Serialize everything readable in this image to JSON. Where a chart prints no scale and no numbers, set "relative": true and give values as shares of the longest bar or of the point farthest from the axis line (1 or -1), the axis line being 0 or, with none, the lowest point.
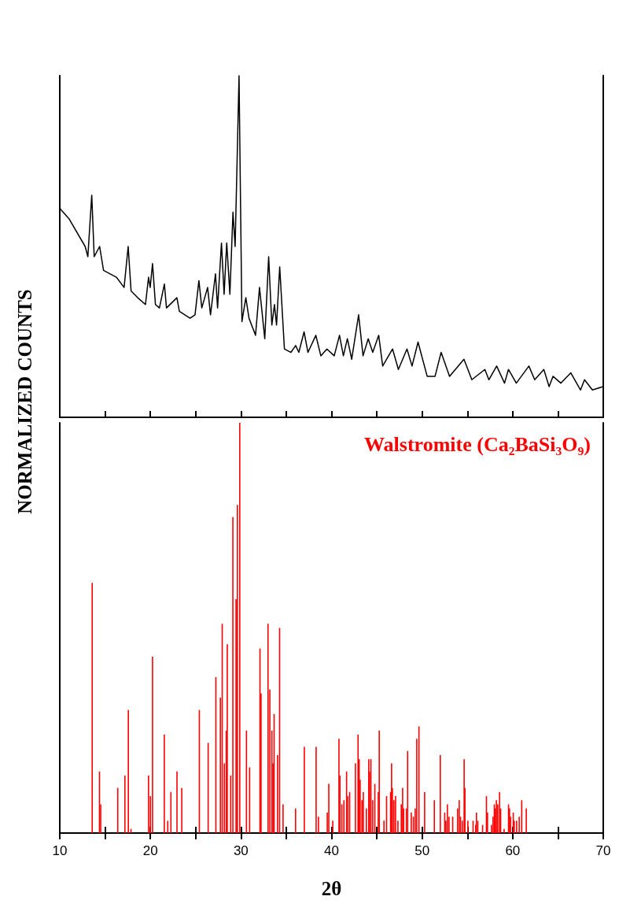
{
  "chart_data": [
    {
      "type": "line",
      "relative": true,
      "xlim": [
        10,
        70
      ],
      "tick_labels": false,
      "xticks": [
        10,
        {
          "value": 15,
          "label": null
        },
        20,
        {
          "value": 25,
          "label": null
        },
        30,
        {
          "value": 35,
          "label": null
        },
        40,
        {
          "value": 45,
          "label": null
        },
        50,
        {
          "value": 55,
          "label": null
        },
        60,
        {
          "value": 65,
          "label": null
        },
        70
      ],
      "series": [
        {
          "color": "#000000",
          "x": [
            10.05,
            11.05,
            12.8,
            13.1,
            13.53,
            13.8,
            14.4,
            14.83,
            16.25,
            17.1,
            17.55,
            17.87,
            18.6,
            19.46,
            19.8,
            19.98,
            20.24,
            20.56,
            21.0,
            21.55,
            21.78,
            22.93,
            23.2,
            24.38,
            24.93,
            25.36,
            25.68,
            26.32,
            26.64,
            27.19,
            27.42,
            27.85,
            28.14,
            28.43,
            28.78,
            29.12,
            29.36,
            29.79,
            30.11,
            30.54,
            30.89,
            31.61,
            32.05,
            32.63,
            33.06,
            33.41,
            33.7,
            33.93,
            34.28,
            34.8,
            35.52,
            36.04,
            36.39,
            36.97,
            37.4,
            38.27,
            38.82,
            39.49,
            40.3,
            40.88,
            41.31,
            41.75,
            42.23,
            42.99,
            43.48,
            44.05,
            44.55,
            45.21,
            45.65,
            46.74,
            47.38,
            48.33,
            48.89,
            49.55,
            50.56,
            51.43,
            52.1,
            53.03,
            54.62,
            55.49,
            56.93,
            57.37,
            58.23,
            59.1,
            59.53,
            60.4,
            61.79,
            62.43,
            63.44,
            64.02,
            64.45,
            65.32,
            66.42,
            67.49,
            67.93,
            68.8,
            70
          ],
          "values": [
            0.61,
            0.58,
            0.5,
            0.47,
            0.65,
            0.47,
            0.5,
            0.43,
            0.41,
            0.38,
            0.5,
            0.37,
            0.35,
            0.33,
            0.41,
            0.38,
            0.45,
            0.33,
            0.32,
            0.39,
            0.32,
            0.35,
            0.31,
            0.29,
            0.3,
            0.4,
            0.32,
            0.38,
            0.3,
            0.42,
            0.32,
            0.51,
            0.36,
            0.51,
            0.36,
            0.6,
            0.5,
            1,
            0.28,
            0.35,
            0.29,
            0.24,
            0.38,
            0.23,
            0.47,
            0.27,
            0.33,
            0.27,
            0.44,
            0.2,
            0.19,
            0.21,
            0.19,
            0.25,
            0.19,
            0.24,
            0.18,
            0.2,
            0.18,
            0.24,
            0.18,
            0.23,
            0.17,
            0.3,
            0.18,
            0.23,
            0.19,
            0.24,
            0.15,
            0.2,
            0.14,
            0.2,
            0.15,
            0.22,
            0.12,
            0.12,
            0.19,
            0.12,
            0.17,
            0.11,
            0.14,
            0.11,
            0.15,
            0.1,
            0.14,
            0.1,
            0.15,
            0.11,
            0.14,
            0.09,
            0.12,
            0.1,
            0.13,
            0.08,
            0.11,
            0.08,
            0.09
          ]
        }
      ]
    },
    {
      "type": "bar",
      "relative": true,
      "xlim": [
        10,
        70
      ],
      "xlabel": "2θ",
      "ylabel": "NORMALIZED COUNTS",
      "xticks": [
        10,
        {
          "value": 15,
          "label": null
        },
        20,
        {
          "value": 25,
          "label": null
        },
        30,
        {
          "value": 35,
          "label": null
        },
        40,
        {
          "value": 45,
          "label": null
        },
        50,
        {
          "value": 55,
          "label": null
        },
        60,
        {
          "value": 65,
          "label": null
        },
        70
      ],
      "series": [
        {
          "name": "Walstromite (Ca₂BaSi₃O₉)",
          "color": "#ff0000",
          "x": [
            13.58,
            14.38,
            14.52,
            16.4,
            17.19,
            17.57,
            17.86,
            19.8,
            20.01,
            20.24,
            21.54,
            21.92,
            22.27,
            22.94,
            23.47,
            25.41,
            26.38,
            27.23,
            27.73,
            27.93,
            28.17,
            28.38,
            28.49,
            28.87,
            29.11,
            29.46,
            29.61,
            29.87,
            30.61,
            30.96,
            32.1,
            32.22,
            32.99,
            33.19,
            33.42,
            33.54,
            33.66,
            34.04,
            34.27,
            34.65,
            36.03,
            37.0,
            38.3,
            38.56,
            39.53,
            39.7,
            40.14,
            40.82,
            40.93,
            41.14,
            41.37,
            41.66,
            41.8,
            42.0,
            42.64,
            42.93,
            43.05,
            43.16,
            43.36,
            43.51,
            43.85,
            44.11,
            44.2,
            44.35,
            44.55,
            44.78,
            45.16,
            45.27,
            45.79,
            46.08,
            46.52,
            46.63,
            46.72,
            46.89,
            47.07,
            47.33,
            47.7,
            47.85,
            47.96,
            48.26,
            48.4,
            48.8,
            49.04,
            49.24,
            49.41,
            49.65,
            50.28,
            51.35,
            52.01,
            52.5,
            52.62,
            52.79,
            52.97,
            53.38,
            53.92,
            54.1,
            54.24,
            54.44,
            54.64,
            54.73,
            55.05,
            55.63,
            55.92,
            56.0,
            56.15,
            56.68,
            57.1,
            57.22,
            57.65,
            57.83,
            57.97,
            58.09,
            58.2,
            58.35,
            58.55,
            58.67,
            59.05,
            59.54,
            59.65,
            59.77,
            60.06,
            60.17,
            60.43,
            60.72,
            61.0,
            61.5
          ],
          "values": [
            0.61,
            0.15,
            0.07,
            0.11,
            0.14,
            0.3,
            0.01,
            0.14,
            0.09,
            0.43,
            0.24,
            0.03,
            0.1,
            0.15,
            0.11,
            0.3,
            0.22,
            0.38,
            0.33,
            0.51,
            0.17,
            0.25,
            0.46,
            0.14,
            0.77,
            0.57,
            0.8,
            1,
            0.25,
            0.16,
            0.45,
            0.34,
            0.51,
            0.35,
            0.25,
            0.17,
            0.29,
            0.19,
            0.5,
            0.07,
            0.06,
            0.21,
            0.21,
            0.04,
            0.05,
            0.12,
            0.03,
            0.23,
            0.14,
            0.07,
            0.08,
            0.15,
            0.09,
            0.1,
            0.17,
            0.24,
            0.18,
            0.13,
            0.08,
            0.1,
            0.06,
            0.18,
            0.15,
            0.18,
            0.08,
            0.12,
            0.1,
            0.25,
            0.03,
            0.09,
            0.1,
            0.17,
            0.11,
            0.08,
            0.09,
            0.03,
            0.07,
            0.11,
            0.06,
            0.06,
            0.2,
            0.05,
            0.04,
            0.06,
            0.23,
            0.26,
            0.1,
            0.08,
            0.19,
            0.05,
            0.03,
            0.07,
            0.04,
            0.04,
            0.06,
            0.08,
            0.04,
            0.03,
            0.18,
            0.11,
            0.03,
            0.03,
            0.02,
            0.05,
            0.03,
            0.02,
            0.09,
            0.05,
            0.02,
            0.04,
            0.07,
            0.06,
            0.08,
            0.07,
            0.1,
            0.06,
            0.01,
            0.07,
            0.06,
            0.04,
            0.05,
            0.03,
            0.03,
            0.04,
            0.08,
            0.06
          ]
        }
      ]
    }
  ]
}
